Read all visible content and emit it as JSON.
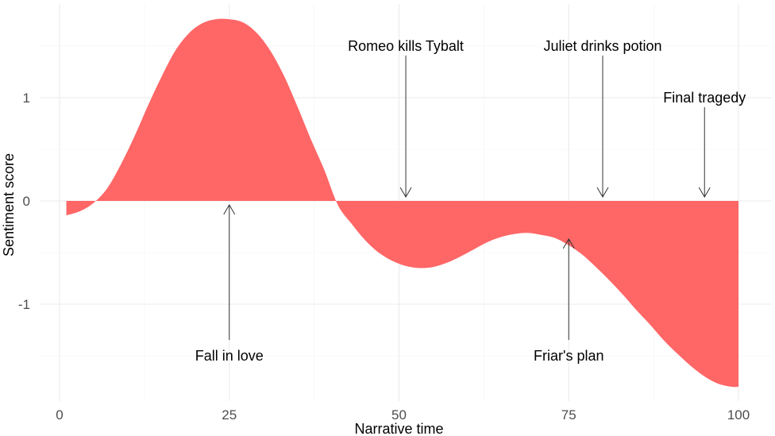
{
  "chart_data": {
    "type": "area",
    "title": "",
    "xlabel": "Narrative time",
    "ylabel": "Sentiment score",
    "xlim": [
      0,
      100
    ],
    "ylim": [
      -1.8,
      1.75
    ],
    "grid": true,
    "fill_color": "#FF6666",
    "x_ticks": [
      0,
      25,
      50,
      75,
      100
    ],
    "y_ticks": [
      -1,
      0,
      1
    ],
    "series": [
      {
        "x": [
          1,
          3,
          5,
          7,
          9,
          11,
          13,
          15,
          17,
          19,
          21,
          23,
          25,
          27,
          29,
          31,
          33,
          35,
          37,
          39,
          41,
          43,
          45,
          47,
          49,
          51,
          53,
          55,
          57,
          59,
          61,
          63,
          65,
          67,
          69,
          71,
          73,
          75,
          77,
          79,
          81,
          83,
          85,
          87,
          89,
          91,
          93,
          95,
          97,
          99,
          100
        ],
        "y": [
          -0.14,
          -0.1,
          -0.02,
          0.12,
          0.35,
          0.62,
          0.92,
          1.2,
          1.45,
          1.62,
          1.72,
          1.76,
          1.76,
          1.73,
          1.63,
          1.46,
          1.22,
          0.92,
          0.6,
          0.3,
          -0.04,
          -0.22,
          -0.38,
          -0.5,
          -0.58,
          -0.63,
          -0.65,
          -0.64,
          -0.6,
          -0.54,
          -0.47,
          -0.4,
          -0.35,
          -0.32,
          -0.31,
          -0.33,
          -0.36,
          -0.43,
          -0.52,
          -0.64,
          -0.77,
          -0.91,
          -1.06,
          -1.2,
          -1.35,
          -1.48,
          -1.6,
          -1.7,
          -1.77,
          -1.8,
          -1.8
        ]
      }
    ],
    "annotations": [
      {
        "label": "Fall in love",
        "x": 25,
        "y": 0.0,
        "direction": "up",
        "label_y": -1.5
      },
      {
        "label": "Romeo kills Tybalt",
        "x": 51,
        "y": 0.0,
        "direction": "down",
        "label_y": 1.5
      },
      {
        "label": "Friar's plan",
        "x": 75,
        "y": -0.33,
        "direction": "up",
        "label_y": -1.5
      },
      {
        "label": "Juliet drinks potion",
        "x": 80,
        "y": 0.0,
        "direction": "down",
        "label_y": 1.5
      },
      {
        "label": "Final tragedy",
        "x": 95,
        "y": 0.0,
        "direction": "down",
        "label_y": 1.0
      }
    ]
  }
}
